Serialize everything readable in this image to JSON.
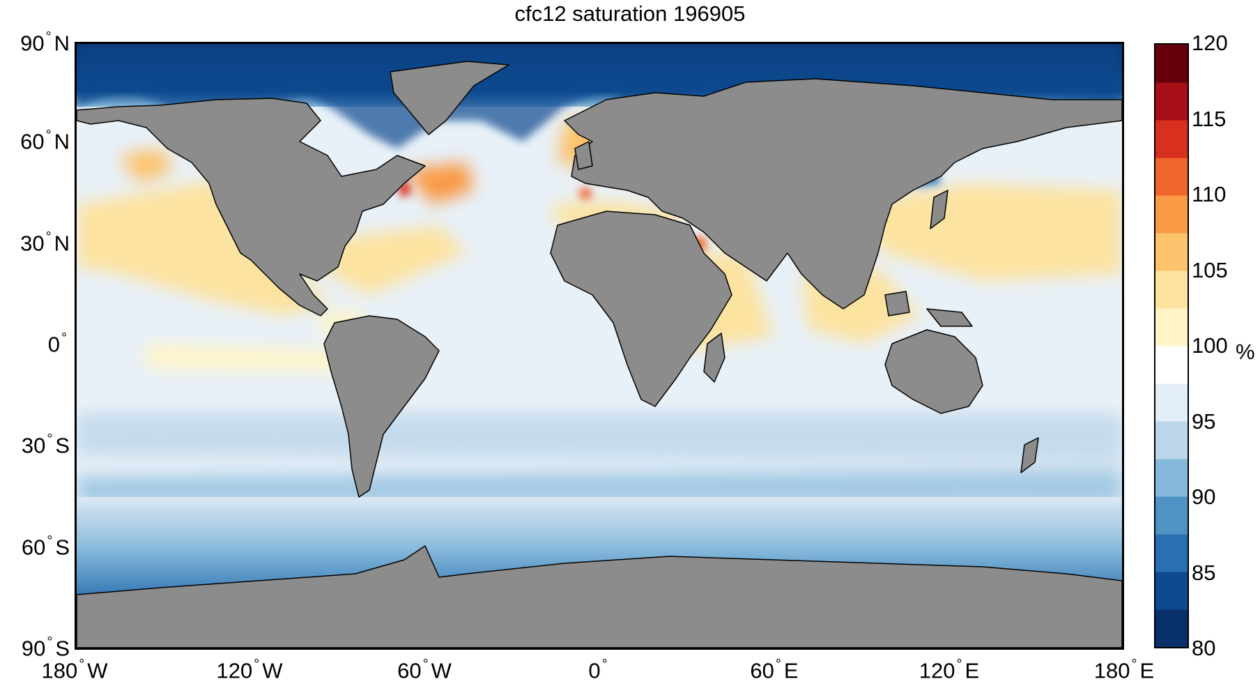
{
  "title": "cfc12 saturation 196905",
  "lat_labels": [
    {
      "deg": "90",
      "dir": "N",
      "lat": 90
    },
    {
      "deg": "60",
      "dir": "N",
      "lat": 60
    },
    {
      "deg": "30",
      "dir": "N",
      "lat": 30
    },
    {
      "deg": "0",
      "dir": "",
      "lat": 0
    },
    {
      "deg": "30",
      "dir": "S",
      "lat": -30
    },
    {
      "deg": "60",
      "dir": "S",
      "lat": -60
    },
    {
      "deg": "90",
      "dir": "S",
      "lat": -90
    }
  ],
  "lon_labels": [
    {
      "deg": "180",
      "dir": "W",
      "lon": -180
    },
    {
      "deg": "120",
      "dir": "W",
      "lon": -120
    },
    {
      "deg": "60",
      "dir": "W",
      "lon": -60
    },
    {
      "deg": "0",
      "dir": "",
      "lon": 0
    },
    {
      "deg": "60",
      "dir": "E",
      "lon": 60
    },
    {
      "deg": "120",
      "dir": "E",
      "lon": 120
    },
    {
      "deg": "180",
      "dir": "E",
      "lon": 180
    }
  ],
  "colorbar": {
    "min": 80,
    "max": 120,
    "ticks": [
      "120",
      "115",
      "110",
      "105",
      "100",
      "95",
      "90",
      "85",
      "80"
    ],
    "tick_values": [
      120,
      115,
      110,
      105,
      100,
      95,
      90,
      85,
      80
    ],
    "unit": "%",
    "colors_low_to_high": [
      "#08306b",
      "#0d4a8f",
      "#2a6fb0",
      "#4e93c4",
      "#86b9db",
      "#bcd6ea",
      "#e4eef7",
      "#ffffff",
      "#fff5c8",
      "#fde3a0",
      "#fcc36c",
      "#f99a45",
      "#f0652c",
      "#d7301f",
      "#a50f15",
      "#67000d"
    ]
  },
  "colors": {
    "land": "#8c8c8c",
    "coastline": "#000000"
  }
}
